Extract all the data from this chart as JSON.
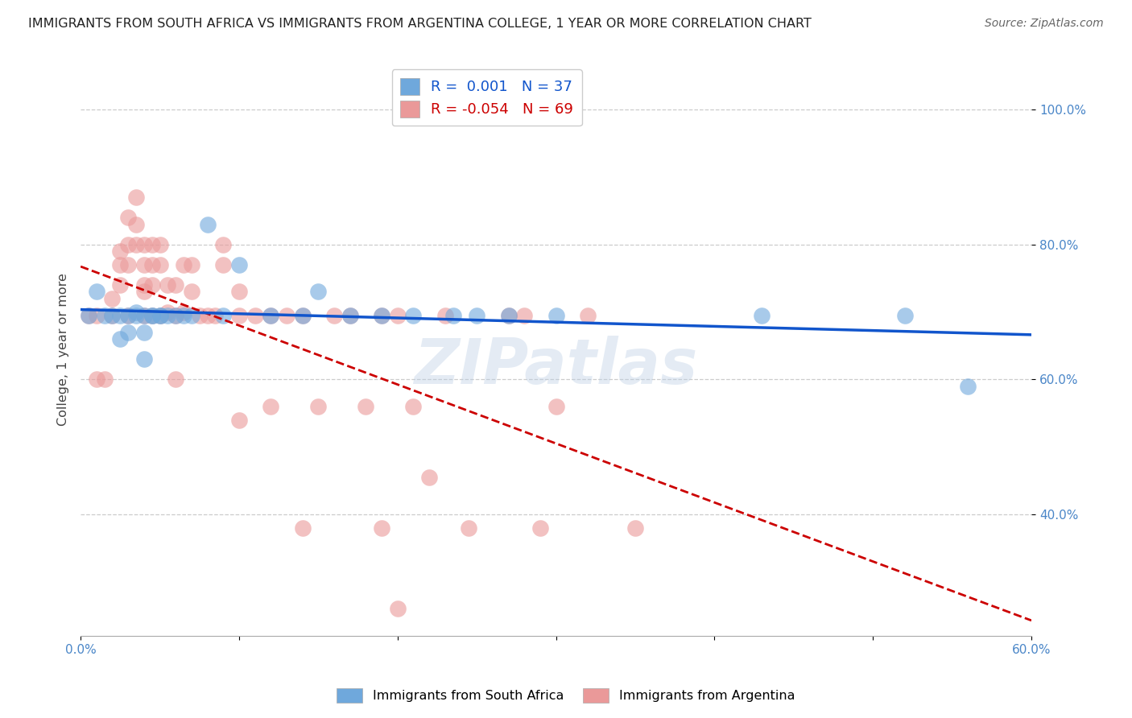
{
  "title": "IMMIGRANTS FROM SOUTH AFRICA VS IMMIGRANTS FROM ARGENTINA COLLEGE, 1 YEAR OR MORE CORRELATION CHART",
  "source": "Source: ZipAtlas.com",
  "ylabel": "College, 1 year or more",
  "xlim": [
    0.0,
    0.6
  ],
  "ylim": [
    0.22,
    1.07
  ],
  "xtick_labels_shown": [
    "0.0%",
    "60.0%"
  ],
  "xtick_vals_shown": [
    0.0,
    0.6
  ],
  "xtick_vals_minor": [
    0.1,
    0.2,
    0.3,
    0.4,
    0.5
  ],
  "ytick_labels": [
    "100.0%",
    "80.0%",
    "60.0%",
    "40.0%"
  ],
  "ytick_vals": [
    1.0,
    0.8,
    0.6,
    0.4
  ],
  "color_blue": "#6fa8dc",
  "color_pink": "#ea9999",
  "line_blue": "#1155cc",
  "line_pink": "#cc0000",
  "r_blue": 0.001,
  "n_blue": 37,
  "r_pink": -0.054,
  "n_pink": 69,
  "legend_label_blue": "Immigrants from South Africa",
  "legend_label_pink": "Immigrants from Argentina",
  "watermark": "ZIPatlas",
  "blue_x": [
    0.005,
    0.01,
    0.015,
    0.02,
    0.025,
    0.025,
    0.03,
    0.03,
    0.035,
    0.035,
    0.04,
    0.04,
    0.04,
    0.045,
    0.045,
    0.05,
    0.05,
    0.055,
    0.06,
    0.065,
    0.07,
    0.08,
    0.09,
    0.1,
    0.12,
    0.14,
    0.15,
    0.17,
    0.19,
    0.21,
    0.235,
    0.25,
    0.27,
    0.3,
    0.43,
    0.52,
    0.56
  ],
  "blue_y": [
    0.695,
    0.73,
    0.695,
    0.695,
    0.695,
    0.66,
    0.695,
    0.67,
    0.7,
    0.695,
    0.695,
    0.67,
    0.63,
    0.695,
    0.695,
    0.695,
    0.695,
    0.695,
    0.695,
    0.695,
    0.695,
    0.83,
    0.695,
    0.77,
    0.695,
    0.695,
    0.73,
    0.695,
    0.695,
    0.695,
    0.695,
    0.695,
    0.695,
    0.695,
    0.695,
    0.695,
    0.59
  ],
  "pink_x": [
    0.005,
    0.01,
    0.01,
    0.015,
    0.02,
    0.02,
    0.025,
    0.025,
    0.025,
    0.03,
    0.03,
    0.03,
    0.03,
    0.035,
    0.035,
    0.035,
    0.04,
    0.04,
    0.04,
    0.04,
    0.04,
    0.045,
    0.045,
    0.045,
    0.045,
    0.05,
    0.05,
    0.05,
    0.055,
    0.055,
    0.06,
    0.06,
    0.06,
    0.065,
    0.065,
    0.07,
    0.07,
    0.075,
    0.08,
    0.085,
    0.09,
    0.09,
    0.1,
    0.1,
    0.11,
    0.12,
    0.13,
    0.14,
    0.15,
    0.16,
    0.17,
    0.18,
    0.19,
    0.2,
    0.21,
    0.22,
    0.23,
    0.245,
    0.27,
    0.28,
    0.29,
    0.3,
    0.32,
    0.35,
    0.1,
    0.12,
    0.14,
    0.19,
    0.2
  ],
  "pink_y": [
    0.695,
    0.695,
    0.6,
    0.6,
    0.72,
    0.695,
    0.79,
    0.77,
    0.74,
    0.84,
    0.8,
    0.77,
    0.695,
    0.87,
    0.83,
    0.8,
    0.8,
    0.77,
    0.74,
    0.73,
    0.695,
    0.8,
    0.77,
    0.74,
    0.695,
    0.8,
    0.77,
    0.695,
    0.74,
    0.7,
    0.74,
    0.695,
    0.6,
    0.77,
    0.7,
    0.77,
    0.73,
    0.695,
    0.695,
    0.695,
    0.8,
    0.77,
    0.73,
    0.695,
    0.695,
    0.695,
    0.695,
    0.695,
    0.56,
    0.695,
    0.695,
    0.56,
    0.695,
    0.695,
    0.56,
    0.455,
    0.695,
    0.38,
    0.695,
    0.695,
    0.38,
    0.56,
    0.695,
    0.38,
    0.54,
    0.56,
    0.38,
    0.38,
    0.26
  ],
  "background_color": "#ffffff",
  "grid_color": "#cccccc",
  "title_color": "#222222",
  "axis_color": "#4a86c8"
}
